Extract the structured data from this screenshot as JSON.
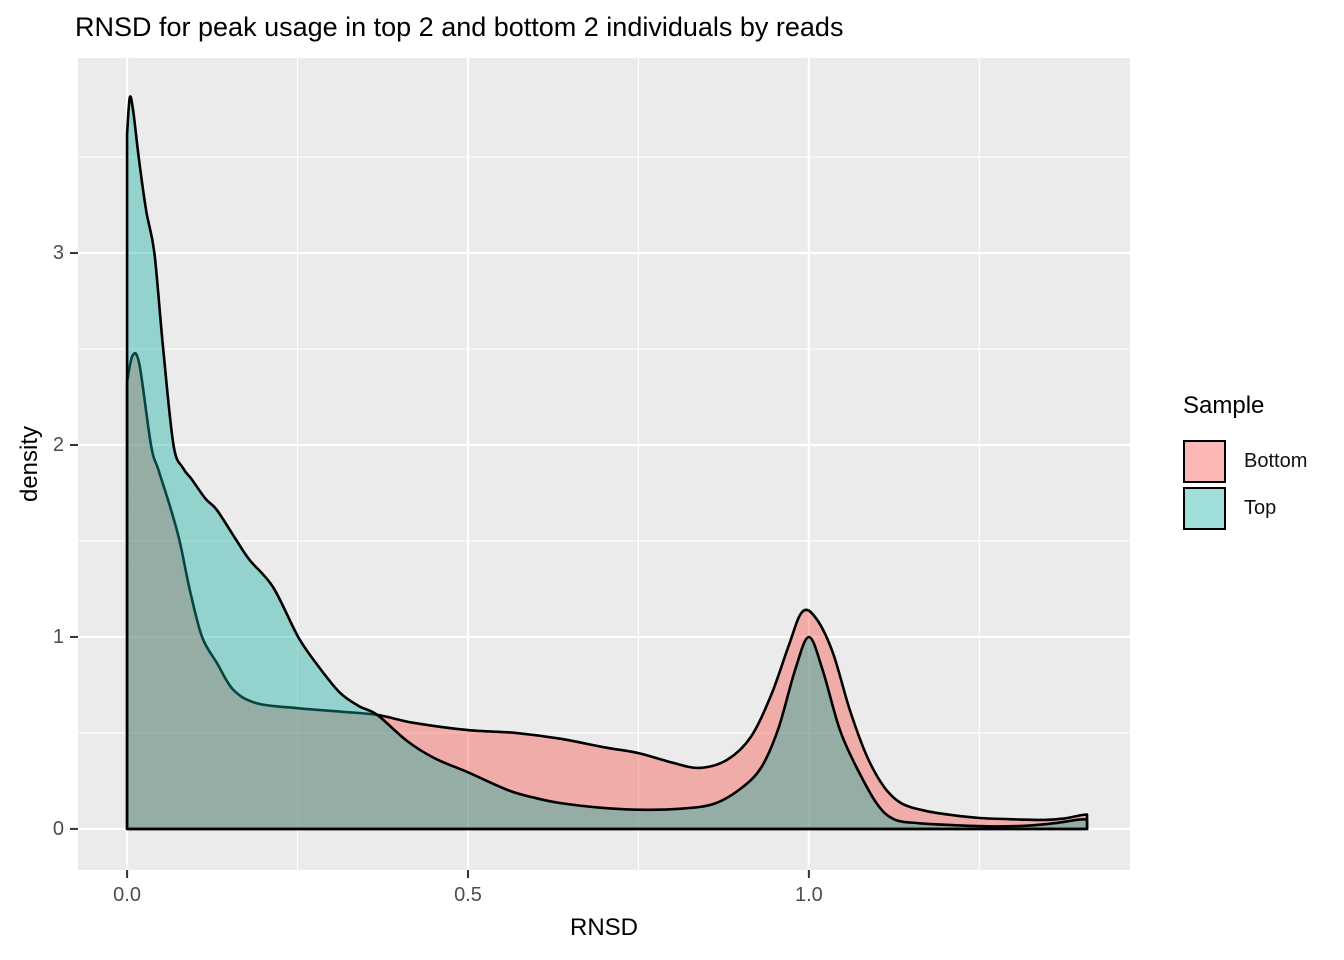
{
  "title": "RNSD for peak usage in top 2 and bottom 2 individuals by reads",
  "chart_data": {
    "type": "area",
    "subtype": "overlapping-density",
    "title": "RNSD for peak usage in top 2 and bottom 2 individuals by reads",
    "xlabel": "RNSD",
    "ylabel": "density",
    "xlim": [
      -0.072,
      1.471
    ],
    "ylim": [
      -0.214,
      4.016
    ],
    "grid": "on",
    "panel_bg": "#EBEBEB",
    "gridline_color": "#FFFFFF",
    "tick_text_color": "#4D4D4D",
    "tick_mark_color": "#333333",
    "outline_color": "#000000",
    "fill_alpha": 0.4,
    "x_ticks": [
      {
        "value": 0.0,
        "label": "0.0"
      },
      {
        "value": 0.5,
        "label": "0.5"
      },
      {
        "value": 1.0,
        "label": "1.0"
      }
    ],
    "y_ticks": [
      {
        "value": 0,
        "label": "0"
      },
      {
        "value": 1,
        "label": "1"
      },
      {
        "value": 2,
        "label": "2"
      },
      {
        "value": 3,
        "label": "3"
      }
    ],
    "x_minor": [
      0.25,
      0.75,
      1.25
    ],
    "y_minor": [
      0.5,
      1.5,
      2.5,
      3.5
    ],
    "legend": {
      "title": "Sample",
      "position": "right",
      "entries": [
        {
          "label": "Bottom",
          "fill": "#F54E44"
        },
        {
          "label": "Top",
          "fill": "#12AFA0"
        }
      ]
    },
    "series": [
      {
        "name": "Bottom",
        "fill": "#F54E44",
        "points": [
          [
            0,
            0
          ],
          [
            0,
            2.33
          ],
          [
            0.008,
            2.465
          ],
          [
            0.018,
            2.42
          ],
          [
            0.035,
            2.0
          ],
          [
            0.046,
            1.87
          ],
          [
            0.063,
            1.68
          ],
          [
            0.077,
            1.5
          ],
          [
            0.092,
            1.245
          ],
          [
            0.11,
            1.0
          ],
          [
            0.132,
            0.863
          ],
          [
            0.156,
            0.724
          ],
          [
            0.19,
            0.655
          ],
          [
            0.25,
            0.629
          ],
          [
            0.312,
            0.611
          ],
          [
            0.367,
            0.594
          ],
          [
            0.42,
            0.553
          ],
          [
            0.5,
            0.515
          ],
          [
            0.57,
            0.5
          ],
          [
            0.635,
            0.47
          ],
          [
            0.7,
            0.425
          ],
          [
            0.75,
            0.395
          ],
          [
            0.8,
            0.345
          ],
          [
            0.84,
            0.318
          ],
          [
            0.88,
            0.36
          ],
          [
            0.915,
            0.48
          ],
          [
            0.945,
            0.7
          ],
          [
            0.97,
            0.95
          ],
          [
            0.99,
            1.13
          ],
          [
            1.01,
            1.1
          ],
          [
            1.035,
            0.92
          ],
          [
            1.06,
            0.62
          ],
          [
            1.085,
            0.38
          ],
          [
            1.11,
            0.22
          ],
          [
            1.135,
            0.135
          ],
          [
            1.17,
            0.095
          ],
          [
            1.21,
            0.072
          ],
          [
            1.25,
            0.057
          ],
          [
            1.3,
            0.05
          ],
          [
            1.345,
            0.047
          ],
          [
            1.375,
            0.055
          ],
          [
            1.4,
            0.072
          ],
          [
            1.408,
            0.075
          ],
          [
            1.408,
            0
          ]
        ]
      },
      {
        "name": "Top",
        "fill": "#12AFA0",
        "points": [
          [
            0,
            0
          ],
          [
            0,
            3.62
          ],
          [
            0.004,
            3.81
          ],
          [
            0.009,
            3.74
          ],
          [
            0.017,
            3.5
          ],
          [
            0.028,
            3.22
          ],
          [
            0.04,
            3.0
          ],
          [
            0.053,
            2.5
          ],
          [
            0.068,
            2.0
          ],
          [
            0.082,
            1.88
          ],
          [
            0.095,
            1.82
          ],
          [
            0.115,
            1.72
          ],
          [
            0.132,
            1.66
          ],
          [
            0.161,
            1.5
          ],
          [
            0.18,
            1.4
          ],
          [
            0.214,
            1.26
          ],
          [
            0.251,
            1.0
          ],
          [
            0.28,
            0.85
          ],
          [
            0.312,
            0.71
          ],
          [
            0.34,
            0.64
          ],
          [
            0.367,
            0.594
          ],
          [
            0.41,
            0.46
          ],
          [
            0.45,
            0.37
          ],
          [
            0.5,
            0.295
          ],
          [
            0.56,
            0.2
          ],
          [
            0.6,
            0.16
          ],
          [
            0.635,
            0.135
          ],
          [
            0.69,
            0.112
          ],
          [
            0.75,
            0.1
          ],
          [
            0.81,
            0.105
          ],
          [
            0.86,
            0.13
          ],
          [
            0.9,
            0.21
          ],
          [
            0.93,
            0.32
          ],
          [
            0.955,
            0.52
          ],
          [
            0.98,
            0.83
          ],
          [
            1.0,
            1.0
          ],
          [
            1.02,
            0.83
          ],
          [
            1.045,
            0.52
          ],
          [
            1.07,
            0.32
          ],
          [
            1.1,
            0.13
          ],
          [
            1.125,
            0.05
          ],
          [
            1.16,
            0.03
          ],
          [
            1.21,
            0.02
          ],
          [
            1.27,
            0.013
          ],
          [
            1.32,
            0.017
          ],
          [
            1.36,
            0.03
          ],
          [
            1.395,
            0.048
          ],
          [
            1.408,
            0.05
          ],
          [
            1.408,
            0
          ]
        ]
      }
    ]
  }
}
